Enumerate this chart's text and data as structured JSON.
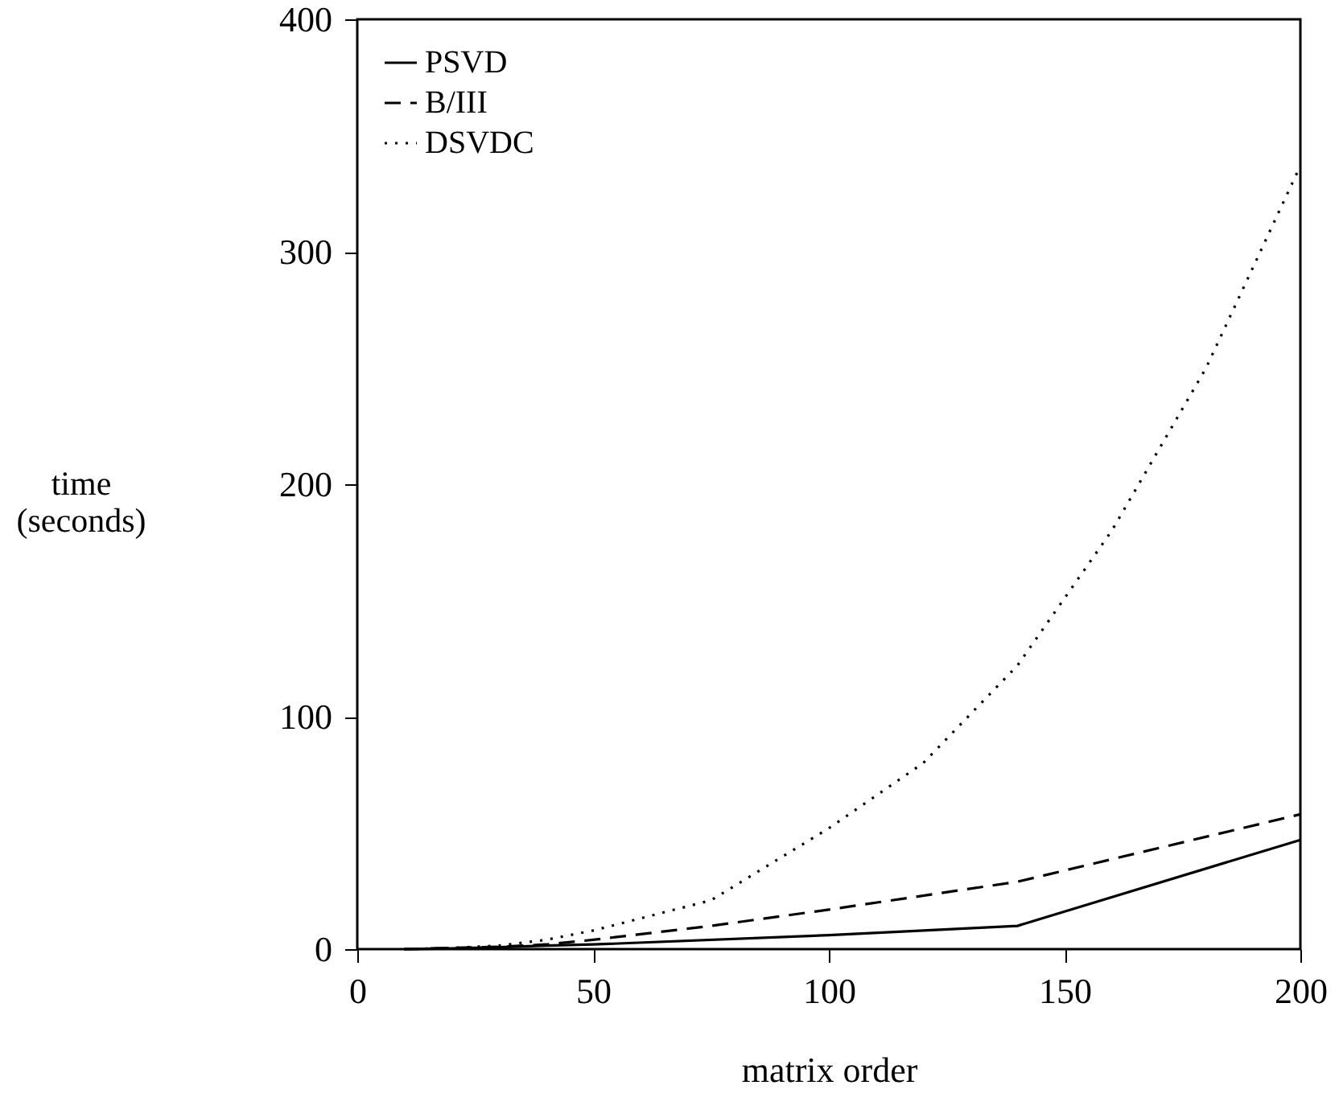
{
  "chart_data": {
    "type": "line",
    "xlabel": "matrix order",
    "ylabel": "time (seconds)",
    "xlim": [
      0,
      200
    ],
    "xticks": [
      0,
      50,
      100,
      150,
      200
    ],
    "ylim": [
      0,
      400
    ],
    "yticks": [
      0,
      100,
      200,
      300,
      400
    ],
    "grid": false,
    "legend": "top left",
    "series": [
      {
        "name": "PSVD",
        "color": "#000000",
        "line_style": "solid",
        "x": [
          10,
          20,
          30,
          40,
          50,
          100,
          140,
          200
        ],
        "values": [
          0,
          0.3,
          0.8,
          1.5,
          2,
          6,
          10,
          47
        ]
      },
      {
        "name": "B/III",
        "color": "#000000",
        "line_style": "dashed",
        "x": [
          10,
          20,
          30,
          40,
          50,
          75,
          100,
          140,
          200
        ],
        "values": [
          0,
          0.5,
          1,
          2,
          4,
          10,
          17,
          29,
          58
        ]
      },
      {
        "name": "DSVDC",
        "color": "#000000",
        "line_style": "dotted",
        "x": [
          10,
          20,
          30,
          40,
          50,
          75,
          100,
          120,
          140,
          160,
          180,
          200
        ],
        "values": [
          0,
          0.5,
          1.5,
          4,
          8,
          21,
          52,
          80,
          122,
          180,
          250,
          337
        ]
      }
    ]
  }
}
